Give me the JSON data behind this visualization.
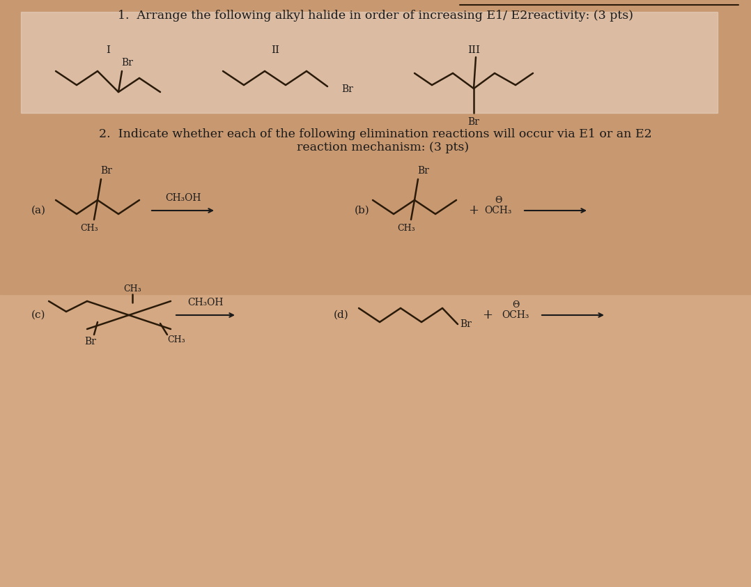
{
  "bg_color": "#e8c8b8",
  "title1": "1.  Arrange the following alkyl halide in order of increasing E1/ E2reactivity: (3 pts)",
  "title2": "2.  Indicate whether each of the following elimination reactions will occur via E1 or an E2\n    reaction mechanism: (3 pts)",
  "label_I": "I",
  "label_II": "II",
  "label_III": "III",
  "label_a": "(a)",
  "label_b": "(b)",
  "label_c": "(c)",
  "label_d": "(d)",
  "text_color": "#1a1a1a",
  "line_color": "#2a1a0a",
  "ch3oh": "CH₃OH",
  "br": "Br",
  "ch3": "CH₃",
  "och3_theta": "θ\nOCH₃",
  "plus": "+",
  "arrow_color": "#1a1a1a"
}
